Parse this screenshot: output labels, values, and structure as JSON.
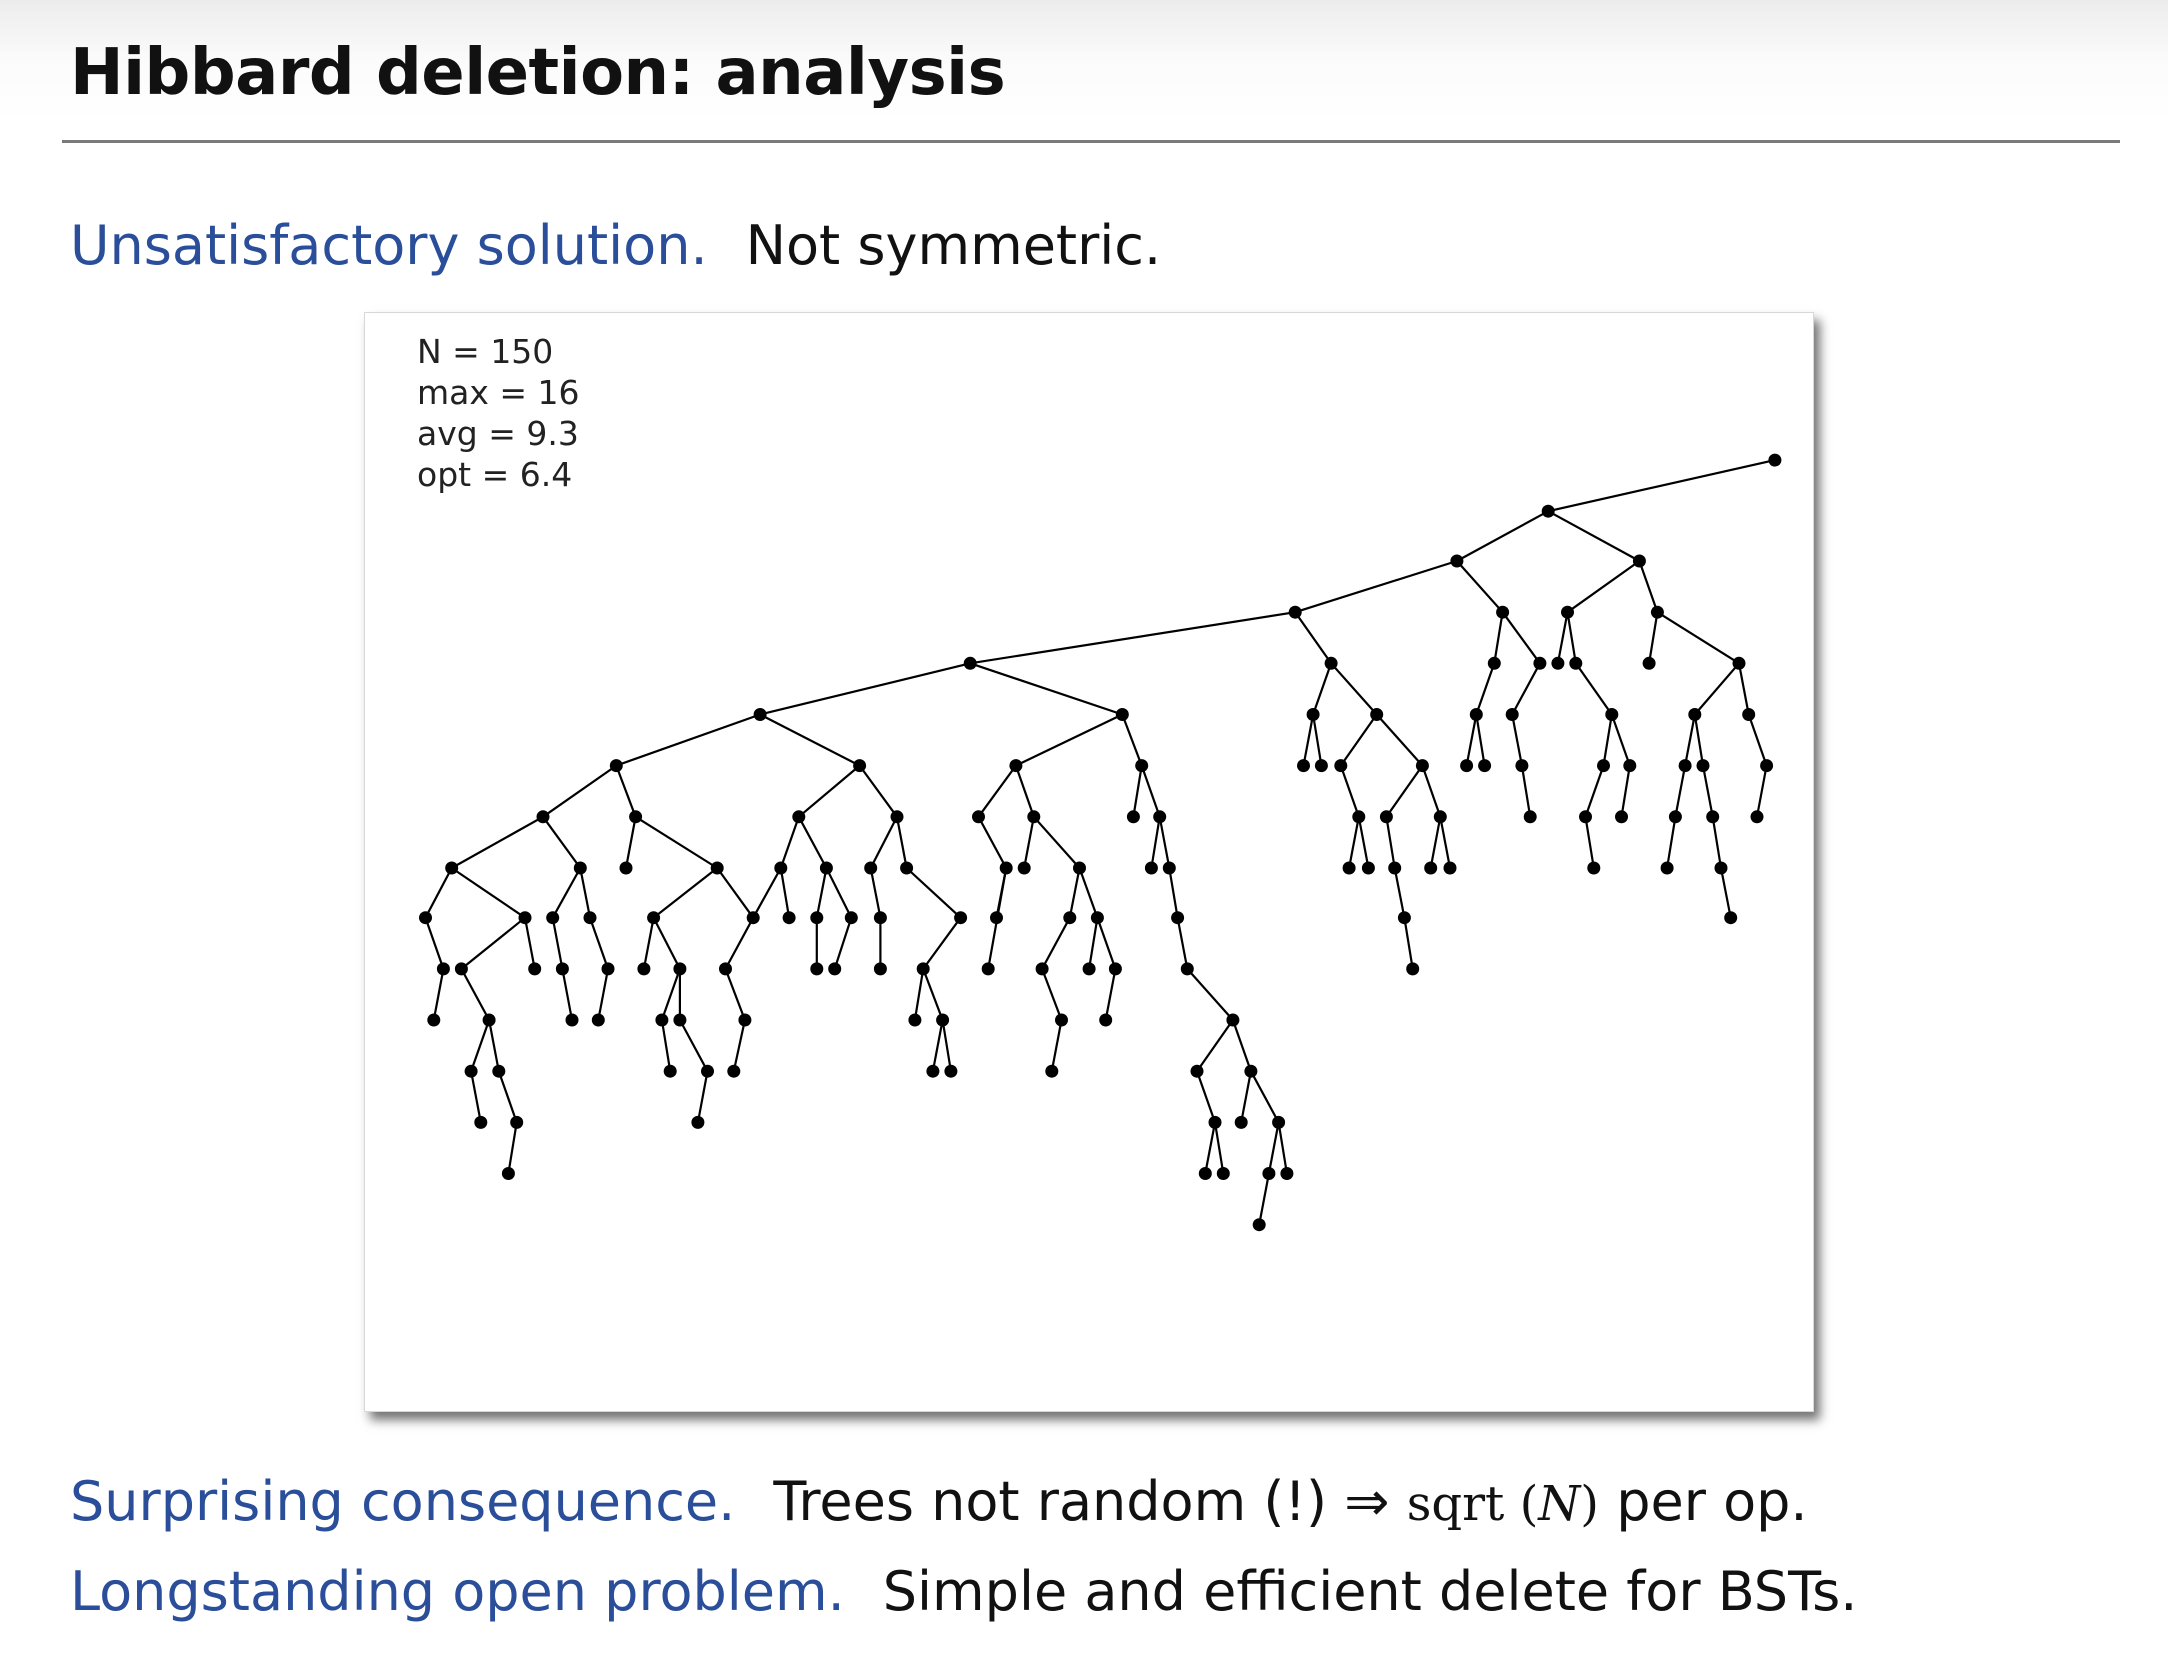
{
  "slide": {
    "title": "Hibbard deletion:  analysis",
    "lines": [
      {
        "lead": "Unsatisfactory solution.",
        "text": "Not symmetric."
      },
      {
        "lead": "Surprising consequence.",
        "text_a": "Trees not random (!)",
        "arrow": "⇒",
        "sqrt": "sqrt (",
        "n": "N",
        "close": ")",
        "text_b": "per op."
      },
      {
        "lead": "Longstanding open problem.",
        "text": "Simple and efficient delete for BSTs."
      }
    ]
  },
  "figure": {
    "stats": [
      "N = 150",
      "max = 16",
      "avg = 9.3",
      "opt = 6.4"
    ]
  },
  "colors": {
    "lead": "#2a4e9a",
    "text": "#111111",
    "rule": "#7a7a7a"
  }
}
